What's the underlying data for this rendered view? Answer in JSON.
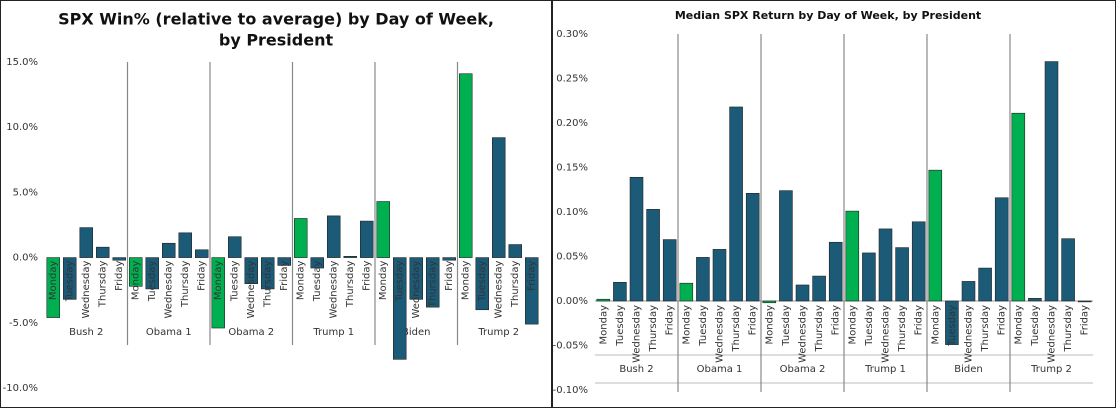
{
  "chart_data": [
    {
      "type": "bar",
      "title": [
        "SPX Win% (relative to average) by Day of Week,",
        "by President"
      ],
      "categories": [
        "Monday",
        "Tuesday",
        "Wednesday",
        "Thursday",
        "Friday"
      ],
      "groups": [
        "Bush 2",
        "Obama 1",
        "Obama 2",
        "Trump 1",
        "Biden",
        "Trump 2"
      ],
      "values": [
        [
          -4.6,
          -3.2,
          2.3,
          0.8,
          -0.2
        ],
        [
          -2.2,
          -2.4,
          1.1,
          1.9,
          0.6
        ],
        [
          -5.4,
          1.6,
          -2.0,
          -2.4,
          -0.6
        ],
        [
          3.0,
          -0.8,
          3.2,
          0.1,
          2.8
        ],
        [
          4.3,
          -7.8,
          -3.2,
          -3.8,
          -0.2
        ],
        [
          14.1,
          -4.0,
          9.2,
          1.0,
          -5.1
        ]
      ],
      "colors": [
        "#00b050",
        "#1b5b78",
        "#1b5b78",
        "#1b5b78",
        "#1b5b78"
      ],
      "ylim": [
        -10,
        15
      ],
      "yticks": [
        {
          "value": -10,
          "label": "-10.0%"
        },
        {
          "value": -5,
          "label": "-5.0%"
        },
        {
          "value": 0,
          "label": "0.0%"
        },
        {
          "value": 5,
          "label": "5.0%"
        },
        {
          "value": 10,
          "label": "10.0%"
        },
        {
          "value": 15,
          "label": "15.0%"
        }
      ],
      "grid": false
    },
    {
      "type": "bar",
      "title": [
        "Median SPX Return by Day of Week, by President"
      ],
      "categories": [
        "Monday",
        "Tuesday",
        "Wednesday",
        "Thursday",
        "Friday"
      ],
      "groups": [
        "Bush 2",
        "Obama 1",
        "Obama 2",
        "Trump 1",
        "Biden",
        "Trump 2"
      ],
      "values": [
        [
          0.002,
          0.021,
          0.139,
          0.103,
          0.069
        ],
        [
          0.02,
          0.049,
          0.058,
          0.218,
          0.121
        ],
        [
          -0.002,
          0.124,
          0.018,
          0.028,
          0.066
        ],
        [
          0.101,
          0.054,
          0.081,
          0.06,
          0.089
        ],
        [
          0.147,
          -0.049,
          0.022,
          0.037,
          0.116
        ],
        [
          0.211,
          0.003,
          0.269,
          0.07,
          -0.001
        ]
      ],
      "colors": [
        "#00b050",
        "#1b5b78",
        "#1b5b78",
        "#1b5b78",
        "#1b5b78"
      ],
      "ylim": [
        -0.1,
        0.3
      ],
      "yticks": [
        {
          "value": -0.1,
          "label": "-0.10%"
        },
        {
          "value": -0.05,
          "label": "-0.05%"
        },
        {
          "value": 0,
          "label": "0.00%"
        },
        {
          "value": 0.05,
          "label": "0.05%"
        },
        {
          "value": 0.1,
          "label": "0.10%"
        },
        {
          "value": 0.15,
          "label": "0.15%"
        },
        {
          "value": 0.2,
          "label": "0.20%"
        },
        {
          "value": 0.25,
          "label": "0.25%"
        },
        {
          "value": 0.3,
          "label": "0.30%"
        }
      ],
      "grid": false
    }
  ]
}
